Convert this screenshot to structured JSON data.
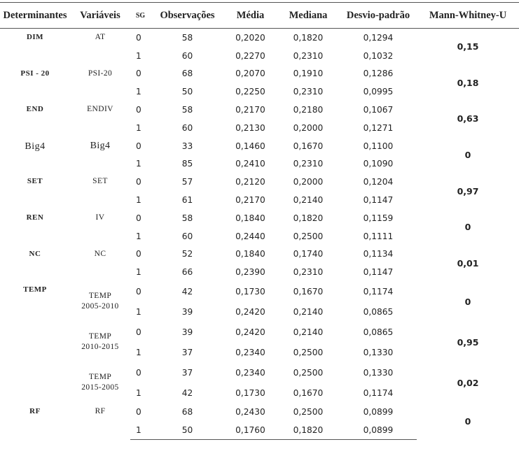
{
  "table": {
    "header": [
      "Determinantes",
      "Variáveis",
      "SG",
      "Observações",
      "Média",
      "Mediana",
      "Desvio-padrão",
      "Mann-Whitney-U"
    ],
    "groups": [
      {
        "determinant": "DIM",
        "variable": "AT",
        "mann_whitney": "0,15",
        "rows": [
          [
            "0",
            "58",
            "0,2020",
            "0,1820",
            "0,1294"
          ],
          [
            "1",
            "60",
            "0,2270",
            "0,2310",
            "0,1032"
          ]
        ]
      },
      {
        "determinant": "PSI - 20",
        "variable": "PSI-20",
        "mann_whitney": "0,18",
        "rows": [
          [
            "0",
            "68",
            "0,2070",
            "0,1910",
            "0,1286"
          ],
          [
            "1",
            "50",
            "0,2250",
            "0,2310",
            "0,0995"
          ]
        ]
      },
      {
        "determinant": "END",
        "variable": "ENDIV",
        "mann_whitney": "0,63",
        "rows": [
          [
            "0",
            "58",
            "0,2170",
            "0,2180",
            "0,1067"
          ],
          [
            "1",
            "60",
            "0,2130",
            "0,2000",
            "0,1271"
          ]
        ]
      },
      {
        "determinant": "Big4",
        "variable": "Big4",
        "mann_whitney": "0",
        "rows": [
          [
            "0",
            "33",
            "0,1460",
            "0,1670",
            "0,1100"
          ],
          [
            "1",
            "85",
            "0,2410",
            "0,2310",
            "0,1090"
          ]
        ]
      },
      {
        "determinant": "SET",
        "variable": "SET",
        "mann_whitney": "0,97",
        "rows": [
          [
            "0",
            "57",
            "0,2120",
            "0,2000",
            "0,1204"
          ],
          [
            "1",
            "61",
            "0,2170",
            "0,2140",
            "0,1147"
          ]
        ]
      },
      {
        "determinant": "REN",
        "variable": "IV",
        "mann_whitney": "0",
        "rows": [
          [
            "0",
            "58",
            "0,1840",
            "0,1820",
            "0,1159"
          ],
          [
            "1",
            "60",
            "0,2440",
            "0,2500",
            "0,1111"
          ]
        ]
      },
      {
        "determinant": "NC",
        "variable": "NC",
        "mann_whitney": "0,01",
        "rows": [
          [
            "0",
            "52",
            "0,1840",
            "0,1740",
            "0,1134"
          ],
          [
            "1",
            "66",
            "0,2390",
            "0,2310",
            "0,1147"
          ]
        ]
      },
      {
        "determinant": "TEMP",
        "variable": "TEMP\n2005-2010",
        "mann_whitney": "0",
        "rows": [
          [
            "0",
            "42",
            "0,1730",
            "0,1670",
            "0,1174"
          ],
          [
            "1",
            "39",
            "0,2420",
            "0,2140",
            "0,0865"
          ]
        ]
      },
      {
        "variable": "TEMP\n2010-2015",
        "mann_whitney": "0,95",
        "rows": [
          [
            "0",
            "39",
            "0,2420",
            "0,2140",
            "0,0865"
          ],
          [
            "1",
            "37",
            "0,2340",
            "0,2500",
            "0,1330"
          ]
        ]
      },
      {
        "variable": "TEMP\n2015-2005",
        "mann_whitney": "0,02",
        "rows": [
          [
            "0",
            "37",
            "0,2340",
            "0,2500",
            "0,1330"
          ],
          [
            "1",
            "42",
            "0,1730",
            "0,1670",
            "0,1174"
          ]
        ]
      },
      {
        "determinant": "RF",
        "variable": "RF",
        "mann_whitney": "0",
        "rows": [
          [
            "0",
            "68",
            "0,2430",
            "0,2500",
            "0,0899"
          ],
          [
            "1",
            "50",
            "0,1760",
            "0,1820",
            "0,0899"
          ]
        ]
      }
    ]
  }
}
